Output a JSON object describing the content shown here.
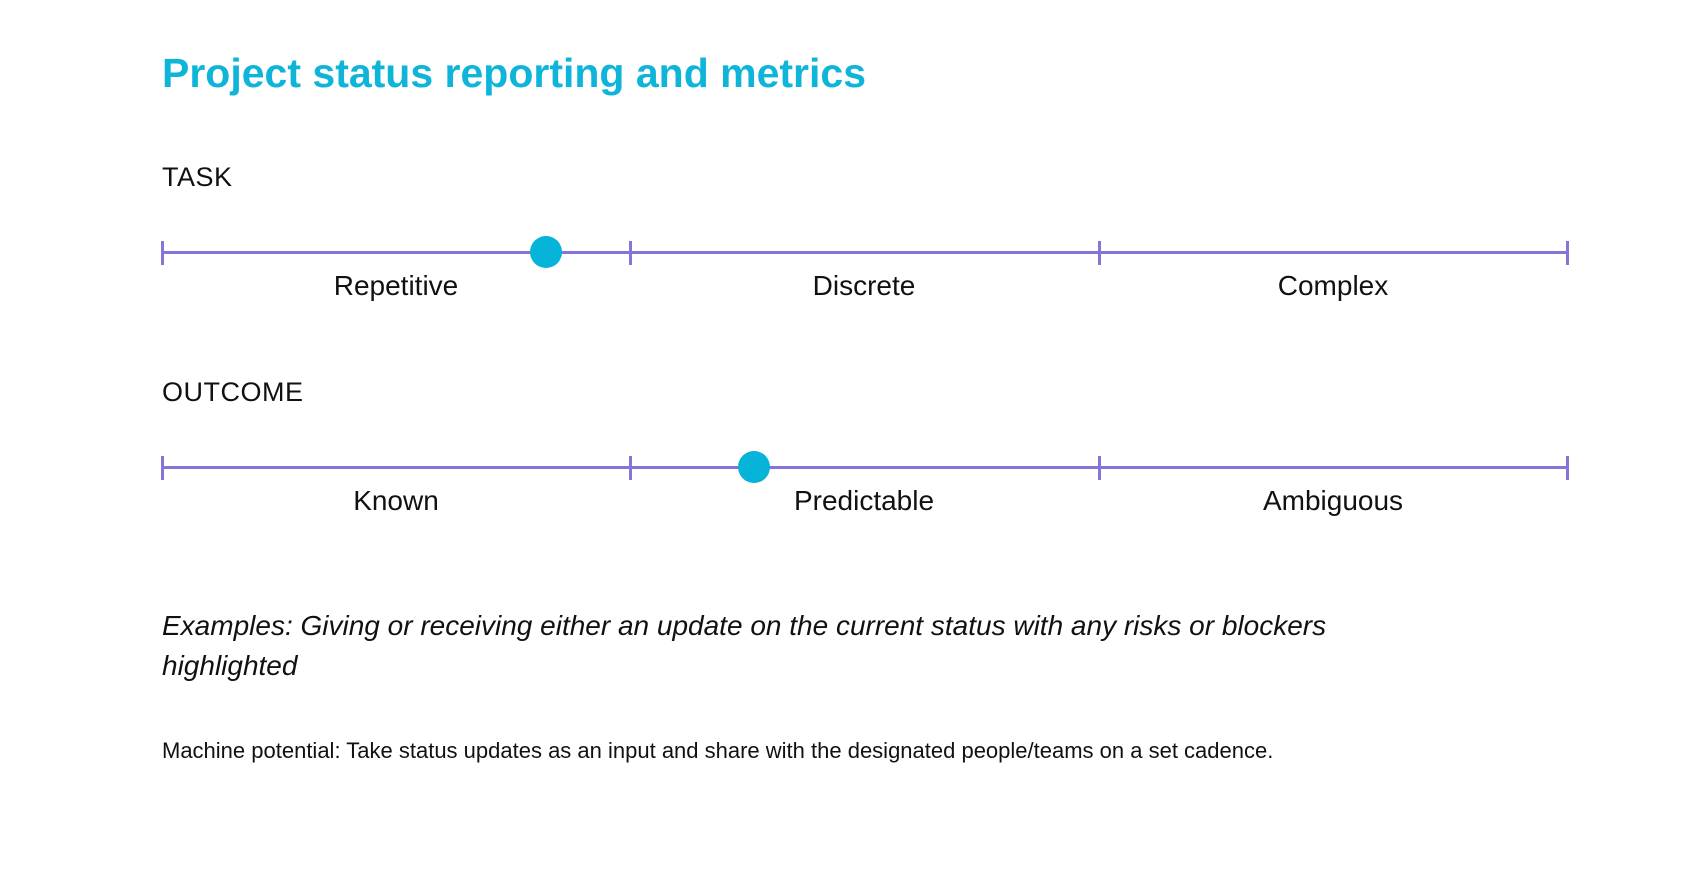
{
  "title": "Project status reporting and metrics",
  "colors": {
    "title": "#0fb5d8",
    "scale_line": "#8674d8",
    "marker": "#06b3d9"
  },
  "scales": {
    "task": {
      "label": "TASK",
      "segments": [
        "Repetitive",
        "Discrete",
        "Complex"
      ],
      "marker_position": 0.273
    },
    "outcome": {
      "label": "OUTCOME",
      "segments": [
        "Known",
        "Predictable",
        "Ambiguous"
      ],
      "marker_position": 0.421
    }
  },
  "examples": "Examples: Giving or receiving either an update on the current status with any risks or blockers highlighted",
  "machine_potential": "Machine potential: Take status updates as an input and share with the designated people/teams on a set cadence."
}
